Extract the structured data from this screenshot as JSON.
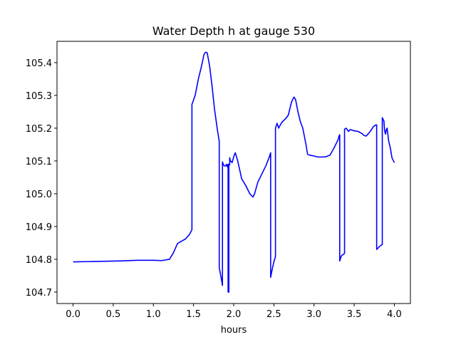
{
  "chart_data": {
    "type": "line",
    "title": "Water Depth h at gauge 530",
    "xlabel": "hours",
    "ylabel": "",
    "xlim": [
      -0.2,
      4.2
    ],
    "ylim": [
      104.665,
      105.465
    ],
    "xticks": [
      0.0,
      0.5,
      1.0,
      1.5,
      2.0,
      2.5,
      3.0,
      3.5,
      4.0
    ],
    "xtick_labels": [
      "0.0",
      "0.5",
      "1.0",
      "1.5",
      "2.0",
      "2.5",
      "3.0",
      "3.5",
      "4.0"
    ],
    "yticks": [
      104.7,
      104.8,
      104.9,
      105.0,
      105.1,
      105.2,
      105.3,
      105.4
    ],
    "ytick_labels": [
      "104.7",
      "104.8",
      "104.9",
      "105.0",
      "105.1",
      "105.2",
      "105.3",
      "105.4"
    ],
    "grid": false,
    "line_color": "#0000ff",
    "series": [
      {
        "x": [
          0.0,
          0.2,
          0.4,
          0.6,
          0.8,
          1.0,
          1.1,
          1.2,
          1.25,
          1.3,
          1.35,
          1.4,
          1.45,
          1.48,
          1.48,
          1.52,
          1.56,
          1.6,
          1.63,
          1.65,
          1.67,
          1.7,
          1.73,
          1.76,
          1.8,
          1.82,
          1.82,
          1.85,
          1.86,
          1.86,
          1.87,
          1.88,
          1.9,
          1.91,
          1.92,
          1.93,
          1.93,
          1.94,
          1.94,
          1.95,
          1.95,
          1.96,
          1.98,
          2.0,
          2.01,
          2.02,
          2.05,
          2.1,
          2.15,
          2.2,
          2.24,
          2.26,
          2.3,
          2.35,
          2.4,
          2.44,
          2.46,
          2.46,
          2.48,
          2.5,
          2.52,
          2.52,
          2.54,
          2.56,
          2.58,
          2.6,
          2.65,
          2.68,
          2.72,
          2.75,
          2.77,
          2.8,
          2.83,
          2.86,
          2.9,
          2.92,
          2.96,
          3.0,
          3.05,
          3.1,
          3.15,
          3.2,
          3.25,
          3.3,
          3.31,
          3.32,
          3.32,
          3.34,
          3.38,
          3.38,
          3.4,
          3.43,
          3.45,
          3.5,
          3.55,
          3.6,
          3.62,
          3.65,
          3.7,
          3.74,
          3.77,
          3.78,
          3.78,
          3.82,
          3.85,
          3.85,
          3.87,
          3.88,
          3.89,
          3.9,
          3.91,
          3.93,
          3.95,
          3.97,
          4.0
        ],
        "values": [
          104.792,
          104.793,
          104.794,
          104.795,
          104.797,
          104.797,
          104.796,
          104.8,
          104.82,
          104.848,
          104.855,
          104.862,
          104.876,
          104.89,
          105.272,
          105.3,
          105.35,
          105.39,
          105.425,
          105.432,
          105.43,
          105.39,
          105.33,
          105.26,
          105.19,
          105.16,
          104.775,
          104.735,
          104.72,
          105.097,
          105.09,
          105.085,
          105.085,
          105.09,
          105.082,
          105.09,
          104.7,
          104.7,
          105.09,
          105.088,
          105.11,
          105.1,
          105.095,
          105.112,
          105.12,
          105.125,
          105.1,
          105.045,
          105.025,
          105.0,
          104.99,
          105.0,
          105.035,
          105.06,
          105.085,
          105.11,
          105.125,
          104.745,
          104.77,
          104.792,
          104.808,
          105.2,
          105.215,
          105.2,
          105.21,
          105.218,
          105.23,
          105.24,
          105.28,
          105.295,
          105.288,
          105.25,
          105.22,
          105.2,
          105.15,
          105.12,
          105.117,
          105.115,
          105.112,
          105.112,
          105.113,
          105.118,
          105.14,
          105.165,
          105.175,
          105.18,
          104.795,
          104.81,
          104.818,
          105.197,
          105.2,
          105.19,
          105.196,
          105.192,
          105.19,
          105.183,
          105.178,
          105.176,
          105.19,
          105.205,
          105.21,
          105.21,
          104.83,
          104.84,
          104.845,
          105.232,
          105.222,
          105.19,
          105.182,
          105.195,
          105.2,
          105.16,
          105.14,
          105.11,
          105.095
        ]
      }
    ]
  }
}
